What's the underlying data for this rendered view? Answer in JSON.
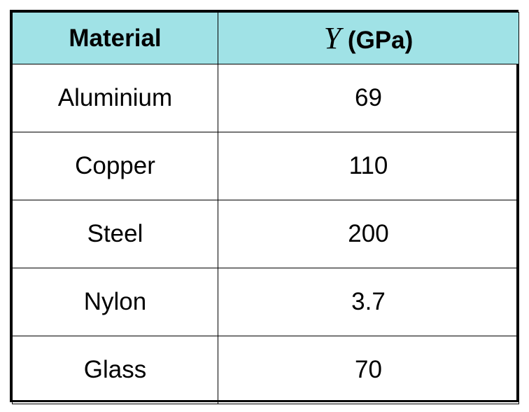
{
  "table": {
    "header_fill": "#a0e2e6",
    "columns": {
      "material": "Material",
      "modulus_symbol": "Y",
      "modulus_unit": " (GPa)"
    },
    "rows": [
      {
        "material": "Aluminium",
        "modulus": "69"
      },
      {
        "material": "Copper",
        "modulus": "110"
      },
      {
        "material": "Steel",
        "modulus": "200"
      },
      {
        "material": "Nylon",
        "modulus": "3.7"
      },
      {
        "material": "Glass",
        "modulus": "70"
      }
    ]
  }
}
